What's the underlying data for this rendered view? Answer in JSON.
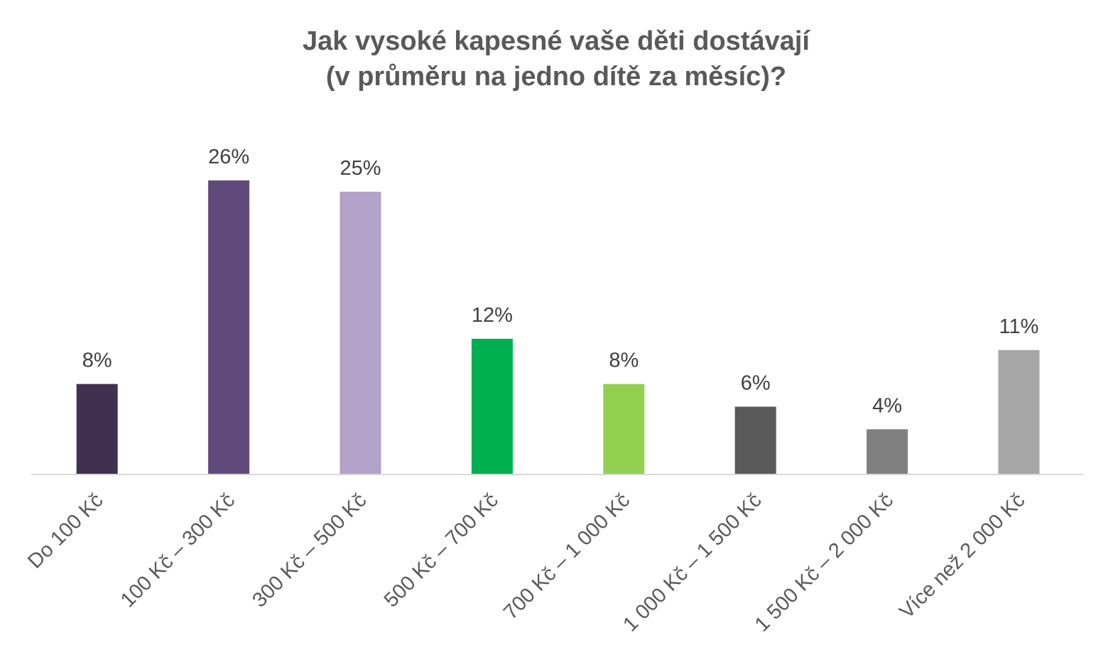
{
  "chart_data": {
    "type": "bar",
    "title_lines": [
      "Jak vysoké kapesné vaše děti dostávají",
      "(v průměru na jedno dítě za měsíc)?"
    ],
    "categories": [
      "Do 100 Kč",
      "100 Kč – 300 Kč",
      "300 Kč – 500 Kč",
      "500 Kč – 700 Kč",
      "700 Kč – 1 000 Kč",
      "1 000 Kč – 1 500 Kč",
      "1 500 Kč – 2 000 Kč",
      "Více než 2 000 Kč"
    ],
    "values": [
      8,
      26,
      25,
      12,
      8,
      6,
      4,
      11
    ],
    "data_labels": [
      "8%",
      "26%",
      "25%",
      "12%",
      "8%",
      "6%",
      "4%",
      "11%"
    ],
    "bar_colors": [
      "#403151",
      "#604a7b",
      "#b3a2c7",
      "#00b050",
      "#92d050",
      "#595959",
      "#808080",
      "#a6a6a6"
    ],
    "ylim": [
      0,
      26
    ],
    "gridlines": false,
    "legend": "none",
    "axis_color": "#d9d9d9"
  }
}
